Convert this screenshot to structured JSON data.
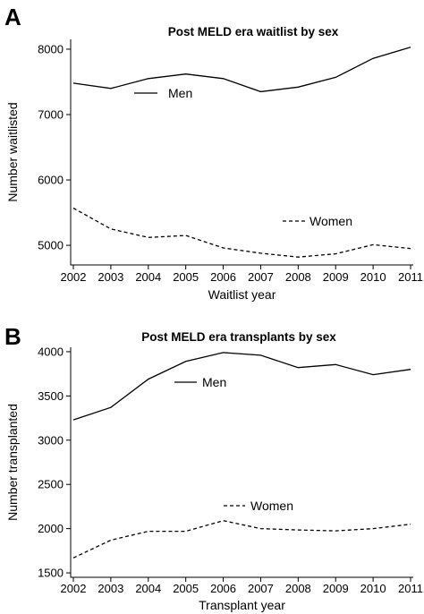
{
  "chart_data": [
    {
      "type": "line",
      "panel": "A",
      "title": "Post MELD era waitlist by sex",
      "xlabel": "Waitlist year",
      "ylabel": "Number waitlisted",
      "x": [
        2002,
        2003,
        2004,
        2005,
        2006,
        2007,
        2008,
        2009,
        2010,
        2011
      ],
      "xticks": [
        "2002",
        "2003",
        "2004",
        "2005",
        "2006",
        "2007",
        "2008",
        "2009",
        "2010",
        "2011"
      ],
      "yticks": [
        5000,
        6000,
        7000,
        8000
      ],
      "ylim": [
        4700,
        8150
      ],
      "series": [
        {
          "name": "Men",
          "style": "solid",
          "values": [
            7480,
            7400,
            7550,
            7620,
            7550,
            7350,
            7420,
            7570,
            7860,
            8030
          ]
        },
        {
          "name": "Women",
          "style": "dashed",
          "values": [
            5570,
            5250,
            5120,
            5150,
            4960,
            4880,
            4820,
            4870,
            5010,
            4950
          ]
        }
      ],
      "legend": [
        {
          "name": "Men",
          "style": "solid"
        },
        {
          "name": "Women",
          "style": "dashed"
        }
      ]
    },
    {
      "type": "line",
      "panel": "B",
      "title": "Post MELD era transplants by sex",
      "xlabel": "Transplant year",
      "ylabel": "Number transplanted",
      "x": [
        2002,
        2003,
        2004,
        2005,
        2006,
        2007,
        2008,
        2009,
        2010,
        2011
      ],
      "xticks": [
        "2002",
        "2003",
        "2004",
        "2005",
        "2006",
        "2007",
        "2008",
        "2009",
        "2010",
        "2011"
      ],
      "yticks": [
        1500,
        2000,
        2500,
        3000,
        3500,
        4000
      ],
      "ylim": [
        1450,
        4050
      ],
      "series": [
        {
          "name": "Men",
          "style": "solid",
          "values": [
            3230,
            3370,
            3690,
            3890,
            3990,
            3960,
            3820,
            3855,
            3740,
            3800
          ]
        },
        {
          "name": "Women",
          "style": "dashed",
          "values": [
            1670,
            1870,
            1970,
            1970,
            2090,
            2000,
            1985,
            1975,
            2000,
            2050
          ]
        }
      ],
      "legend": [
        {
          "name": "Men",
          "style": "solid"
        },
        {
          "name": "Women",
          "style": "dashed"
        }
      ]
    }
  ]
}
